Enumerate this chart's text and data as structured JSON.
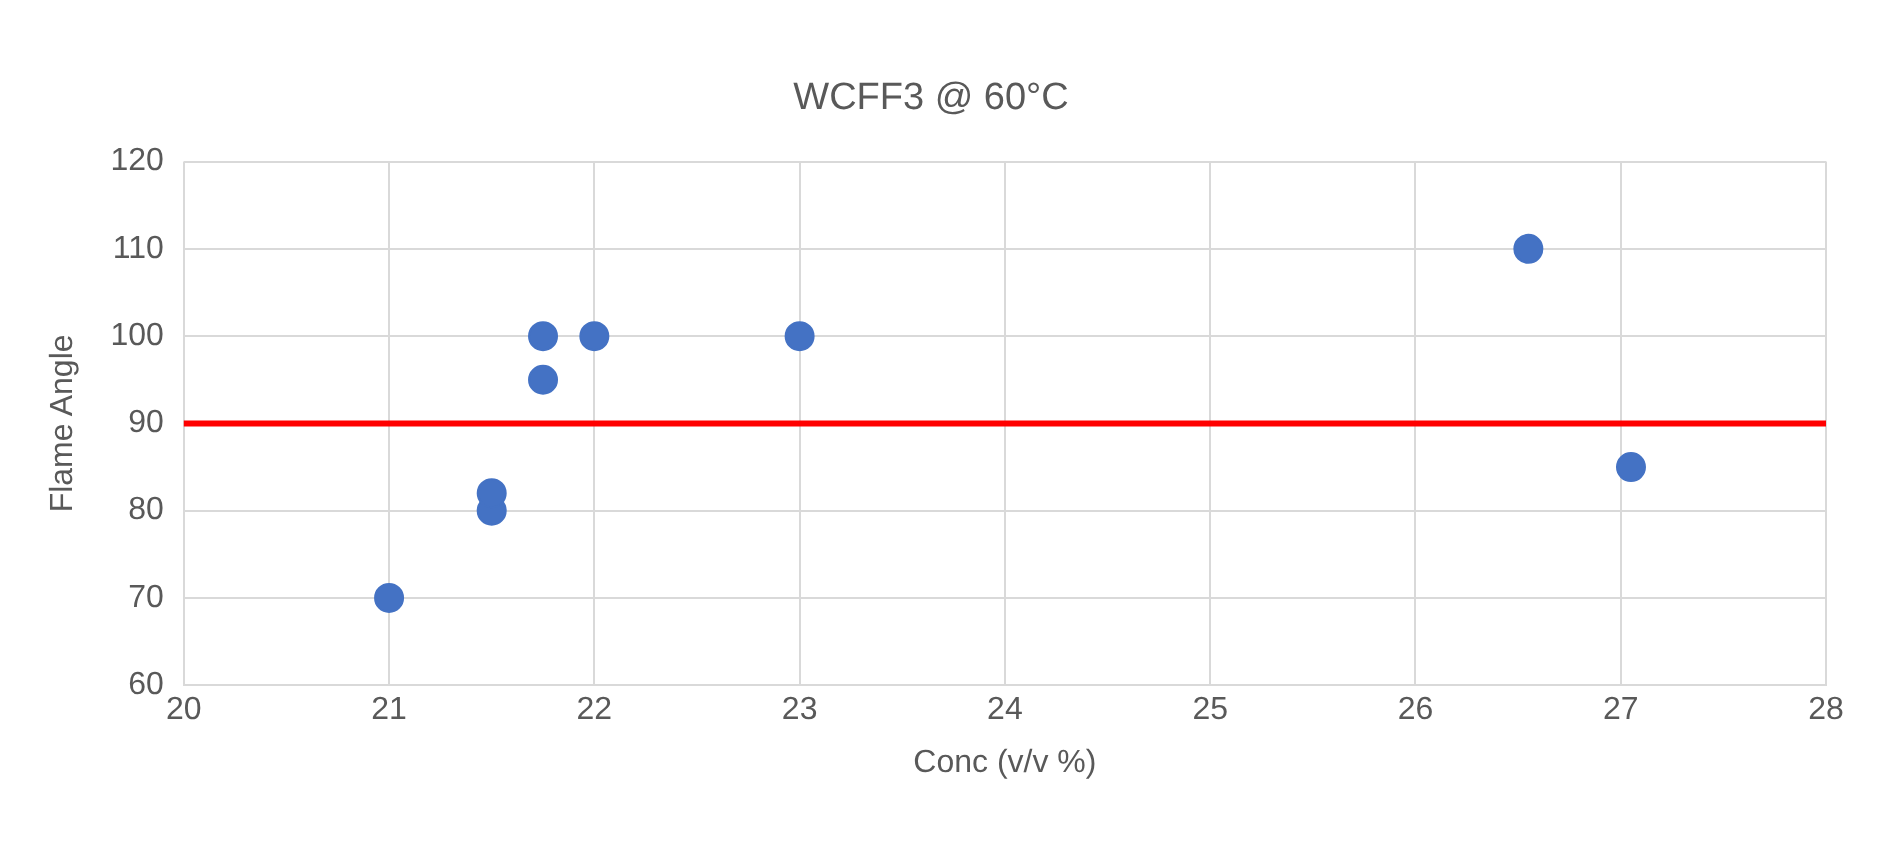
{
  "chart_data": {
    "type": "scatter",
    "title": "WCFF3 @ 60°C",
    "xlabel": "Conc (v/v %)",
    "ylabel": "Flame Angle",
    "x": [
      21,
      21.5,
      21.5,
      21.75,
      21.75,
      22,
      23,
      26.55,
      27.05
    ],
    "series": [
      {
        "color": "#4472c4",
        "values": [
          70,
          80,
          82,
          95,
          100,
          100,
          100,
          110,
          85
        ]
      }
    ],
    "xlim": [
      20,
      28
    ],
    "xticks": [
      20,
      21,
      22,
      23,
      24,
      25,
      26,
      27,
      28
    ],
    "ylim": [
      60,
      120
    ],
    "yticks": [
      60,
      70,
      80,
      90,
      100,
      110,
      120
    ],
    "grid": true,
    "marker": "circle",
    "ref_lines": [
      {
        "axis": "y",
        "value": 90,
        "color": "#ff0000"
      }
    ]
  }
}
